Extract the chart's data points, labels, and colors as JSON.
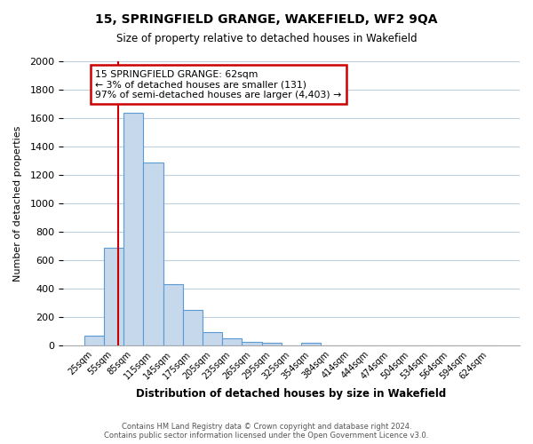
{
  "title": "15, SPRINGFIELD GRANGE, WAKEFIELD, WF2 9QA",
  "subtitle": "Size of property relative to detached houses in Wakefield",
  "xlabel": "Distribution of detached houses by size in Wakefield",
  "ylabel": "Number of detached properties",
  "footer_line1": "Contains HM Land Registry data © Crown copyright and database right 2024.",
  "footer_line2": "Contains public sector information licensed under the Open Government Licence v3.0.",
  "bar_labels": [
    "25sqm",
    "55sqm",
    "85sqm",
    "115sqm",
    "145sqm",
    "175sqm",
    "205sqm",
    "235sqm",
    "265sqm",
    "295sqm",
    "325sqm",
    "354sqm",
    "384sqm",
    "414sqm",
    "444sqm",
    "474sqm",
    "504sqm",
    "534sqm",
    "564sqm",
    "594sqm",
    "624sqm"
  ],
  "bar_values": [
    65,
    690,
    1635,
    1285,
    430,
    250,
    90,
    50,
    25,
    15,
    0,
    15,
    0,
    0,
    0,
    0,
    0,
    0,
    0,
    0,
    0
  ],
  "bar_color": "#c5d8ec",
  "bar_edge_color": "#5b9bd5",
  "annotation_title": "15 SPRINGFIELD GRANGE: 62sqm",
  "annotation_line1": "← 3% of detached houses are smaller (131)",
  "annotation_line2": "97% of semi-detached houses are larger (4,403) →",
  "annotation_box_color": "#ffffff",
  "annotation_box_edge": "#cc0000",
  "red_line_color": "#cc0000",
  "ylim": [
    0,
    2000
  ],
  "yticks": [
    0,
    200,
    400,
    600,
    800,
    1000,
    1200,
    1400,
    1600,
    1800,
    2000
  ],
  "background_color": "#ffffff",
  "grid_color": "#c0cfe0"
}
